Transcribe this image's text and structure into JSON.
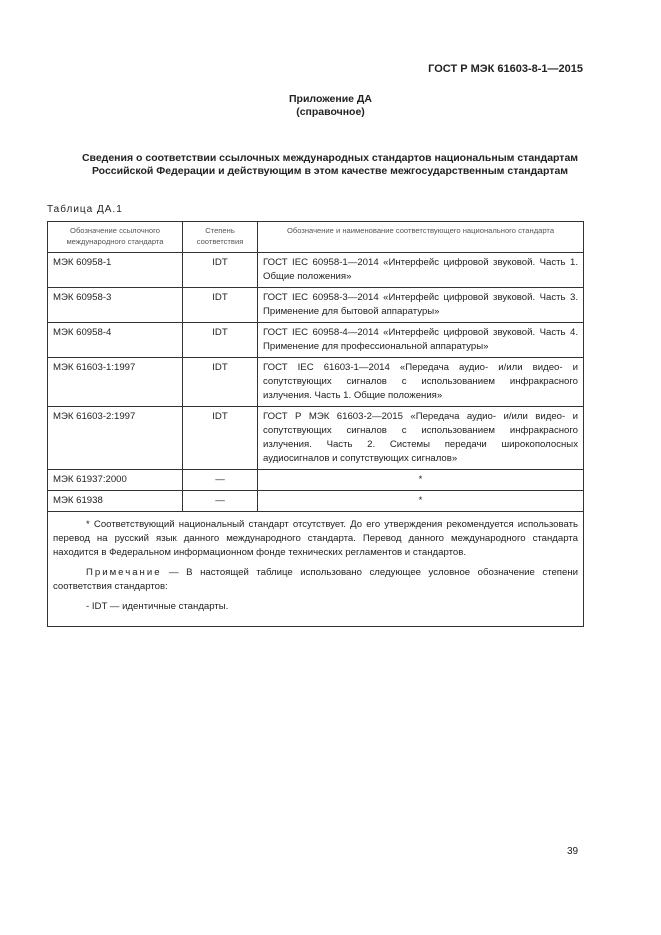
{
  "header": {
    "doc_id": "ГОСТ Р МЭК 61603-8-1—2015"
  },
  "annex": {
    "title": "Приложение ДА",
    "subtitle": "(справочное)"
  },
  "title": "Сведения о соответствии ссылочных международных стандартов национальным стандартам Российской Федерации и действующим в этом качестве межгосударственным стандартам",
  "table": {
    "caption": "Таблица ДА.1",
    "headers": [
      "Обозначение ссылочного международного стандарта",
      "Степень соответствия",
      "Обозначение и наименование соответствующего национального стандарта"
    ],
    "rows": [
      {
        "intl": "МЭК 60958-1",
        "degree": "IDT",
        "national": "ГОСТ IEC 60958-1—2014 «Интерфейс цифровой звуковой. Часть 1. Общие положения»"
      },
      {
        "intl": "МЭК 60958-3",
        "degree": "IDT",
        "national": "ГОСТ IEC 60958-3—2014 «Интерфейс цифровой звуковой. Часть 3. Применение для бытовой аппаратуры»"
      },
      {
        "intl": "МЭК 60958-4",
        "degree": "IDT",
        "national": "ГОСТ IEC 60958-4—2014 «Интерфейс цифровой звуковой. Часть 4. Применение для профессиональной аппаратуры»"
      },
      {
        "intl": "МЭК 61603-1:1997",
        "degree": "IDT",
        "national": "ГОСТ IEC 61603-1—2014 «Передача аудио- и/или видео- и сопутствующих сигналов с использованием инфракрасного излучения. Часть 1. Общие положения»"
      },
      {
        "intl": "МЭК 61603-2:1997",
        "degree": "IDT",
        "national": "ГОСТ Р МЭК 61603-2—2015 «Передача аудио- и/или видео- и сопутствующих сигналов с использованием инфракрасного излучения. Часть 2. Системы передачи широкополосных аудиосигналов и сопутствующих сигналов»"
      },
      {
        "intl": "МЭК 61937:2000",
        "degree": "—",
        "national": "*"
      },
      {
        "intl": "МЭК 61938",
        "degree": "—",
        "national": "*"
      }
    ],
    "footnote": "* Соответствующий национальный стандарт отсутствует. До его утверждения рекомендуется использовать перевод на русский язык данного международного стандарта. Перевод данного международного стандарта находится в Федеральном информационном фонде технических регламентов и стандартов.",
    "note_label": "Примечание",
    "note_text": " — В настоящей таблице использовано следующее условное обозначение степени соответствия стандартов:",
    "legend": "- IDT — идентичные стандарты."
  },
  "page_number": "39"
}
